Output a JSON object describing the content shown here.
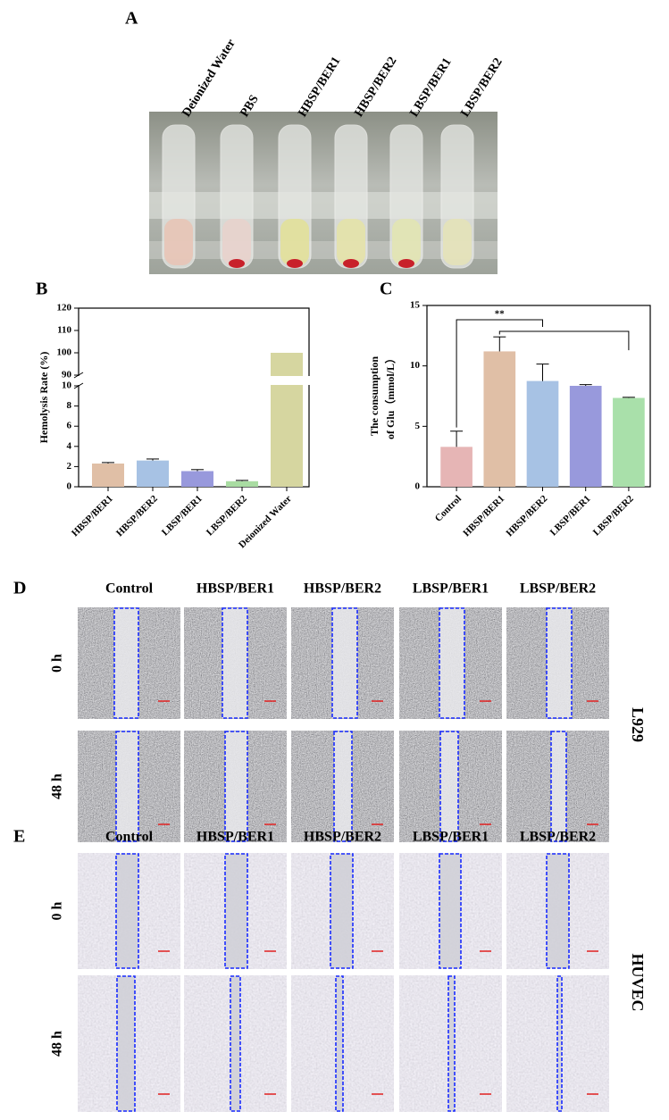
{
  "panel_labels": [
    "A",
    "B",
    "C",
    "D",
    "E"
  ],
  "tube_labels": [
    "Deionized Water",
    "PBS",
    "HBSP/BER1",
    "HBSP/BER2",
    "LBSP/BER1",
    "LBSP/BER2"
  ],
  "chart_data": [
    {
      "type": "bar",
      "y_label": "Hemolysis Rate (%)",
      "categories": [
        "HBSP/BER1",
        "HBSP/BER2",
        "LBSP/BER1",
        "LBSP/BER2",
        "Deionized Water"
      ],
      "values": [
        2.3,
        2.6,
        1.55,
        0.55,
        100
      ],
      "error": [
        0.1,
        0.15,
        0.15,
        0.08,
        0
      ],
      "colors": [
        "#e0bfa6",
        "#a7c2e4",
        "#9899dc",
        "#a9dca2",
        "#d6d6a0"
      ],
      "ylim": [
        0,
        120
      ],
      "ybreak": [
        10,
        90
      ],
      "yticks": [
        0,
        2,
        4,
        6,
        8,
        10,
        90,
        100,
        110,
        120
      ]
    },
    {
      "type": "bar",
      "y_label": [
        "The consumption",
        "of Glu（mmol/L）"
      ],
      "categories": [
        "Control",
        "HBSP/BER1",
        "HBSP/BER2",
        "LBSP/BER1",
        "LBSP/BER2"
      ],
      "values": [
        3.3,
        11.2,
        8.75,
        8.35,
        7.35
      ],
      "error": [
        1.3,
        1.2,
        1.4,
        0.1,
        0.05
      ],
      "colors": [
        "#e6b5b5",
        "#e0bfa6",
        "#a7c2e4",
        "#9899dc",
        "#a9e0aa"
      ],
      "ylim": [
        0,
        15
      ],
      "yticks": [
        0,
        5,
        10,
        15
      ],
      "annotations": [
        "**"
      ]
    }
  ],
  "wound_healing": [
    {
      "cell_line": "L929",
      "columns": [
        "Control",
        "HBSP/BER1",
        "HBSP/BER2",
        "LBSP/BER1",
        "LBSP/BER2"
      ],
      "rows": [
        "0 h",
        "48 h"
      ]
    },
    {
      "cell_line": "HUVEC",
      "columns": [
        "Control",
        "HBSP/BER1",
        "HBSP/BER2",
        "LBSP/BER1",
        "LBSP/BER2"
      ],
      "rows": [
        "0 h",
        "48 h"
      ]
    }
  ]
}
